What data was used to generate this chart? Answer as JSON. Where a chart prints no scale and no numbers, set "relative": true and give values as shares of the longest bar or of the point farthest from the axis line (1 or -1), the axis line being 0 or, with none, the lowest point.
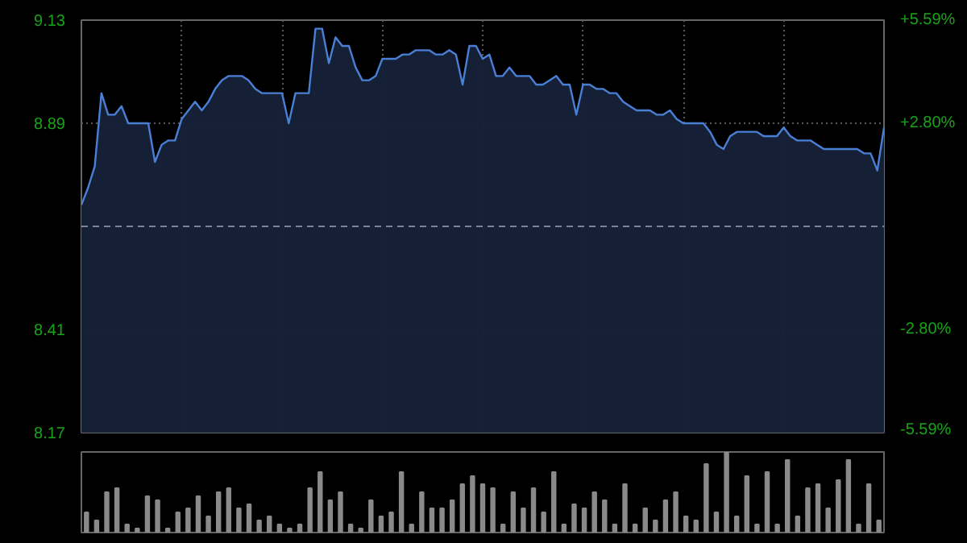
{
  "chart_data": [
    {
      "type": "area",
      "categories": [
        null,
        null,
        null,
        null,
        null,
        null,
        null,
        null,
        null,
        null,
        null,
        null,
        null,
        null,
        null,
        null,
        null,
        null,
        null,
        null,
        null,
        null,
        null,
        null,
        null,
        null,
        null,
        null,
        null,
        null,
        null,
        null,
        null,
        null,
        null,
        null,
        null,
        null,
        null,
        null,
        null,
        null,
        null,
        null,
        null,
        null,
        null,
        null,
        null,
        null,
        null,
        null,
        null,
        null,
        null,
        null,
        null,
        null,
        null,
        null,
        null,
        null,
        null,
        null,
        null,
        null,
        null,
        null,
        null,
        null,
        null,
        null,
        null,
        null,
        null,
        null,
        null,
        null,
        null,
        null,
        null,
        null,
        null,
        null,
        null,
        null,
        null,
        null,
        null,
        null,
        null,
        null,
        null,
        null,
        null,
        null,
        null,
        null,
        null,
        null,
        null,
        null,
        null,
        null,
        null,
        null,
        null,
        null,
        null,
        null,
        null,
        null,
        null,
        null,
        null,
        null,
        null,
        null,
        null,
        null,
        null
      ],
      "series": [
        {
          "color": "#4a7fd6",
          "values": [
            8.7,
            8.74,
            8.79,
            8.96,
            8.91,
            8.91,
            8.93,
            8.89,
            8.89,
            8.89,
            8.89,
            8.8,
            8.84,
            8.85,
            8.85,
            8.9,
            8.92,
            8.94,
            8.92,
            8.94,
            8.97,
            8.99,
            9.0,
            9.0,
            9.0,
            8.99,
            8.97,
            8.96,
            8.96,
            8.96,
            8.96,
            8.89,
            8.96,
            8.96,
            8.96,
            9.11,
            9.11,
            9.03,
            9.09,
            9.07,
            9.07,
            9.02,
            8.99,
            8.99,
            9.0,
            9.04,
            9.04,
            9.04,
            9.05,
            9.05,
            9.06,
            9.06,
            9.06,
            9.05,
            9.05,
            9.06,
            9.05,
            8.98,
            9.07,
            9.07,
            9.04,
            9.05,
            9.0,
            9.0,
            9.02,
            9.0,
            9.0,
            9.0,
            8.98,
            8.98,
            8.99,
            9.0,
            8.98,
            8.98,
            8.91,
            8.98,
            8.98,
            8.97,
            8.97,
            8.96,
            8.96,
            8.94,
            8.93,
            8.92,
            8.92,
            8.92,
            8.91,
            8.91,
            8.92,
            8.9,
            8.89,
            8.89,
            8.89,
            8.89,
            8.87,
            8.84,
            8.83,
            8.86,
            8.87,
            8.87,
            8.87,
            8.87,
            8.86,
            8.86,
            8.86,
            8.88,
            8.86,
            8.85,
            8.85,
            8.85,
            8.84,
            8.83,
            8.83,
            8.83,
            8.83,
            8.83,
            8.83,
            8.82,
            8.82,
            8.78,
            8.88
          ]
        }
      ],
      "ylim": [
        8.17,
        9.13
      ],
      "yticks": [
        8.17,
        8.41,
        8.89,
        9.13
      ],
      "y2lim": [
        -5.59,
        5.59
      ],
      "y2ticks": [
        {
          "value": -5.59,
          "label": "-5.59%"
        },
        {
          "value": -2.8,
          "label": "-2.80%"
        },
        {
          "value": 2.8,
          "label": "+2.80%"
        },
        {
          "value": 5.59,
          "label": "+5.59%"
        }
      ],
      "ref_lines": [
        {
          "axis": "y",
          "value": 8.65,
          "line_style": "dashed",
          "color": "#7a8494"
        }
      ],
      "grid": true,
      "marker": "none",
      "line_style": "solid"
    },
    {
      "type": "bar",
      "relative": true,
      "categories": [
        null,
        null,
        null,
        null,
        null,
        null,
        null,
        null,
        null,
        null,
        null,
        null,
        null,
        null,
        null,
        null,
        null,
        null,
        null,
        null,
        null,
        null,
        null,
        null,
        null,
        null,
        null,
        null,
        null,
        null,
        null,
        null,
        null,
        null,
        null,
        null,
        null,
        null,
        null,
        null,
        null,
        null,
        null,
        null,
        null,
        null,
        null,
        null,
        null,
        null,
        null,
        null,
        null,
        null,
        null,
        null,
        null,
        null,
        null,
        null,
        null,
        null,
        null,
        null,
        null,
        null,
        null,
        null,
        null,
        null,
        null,
        null,
        null,
        null,
        null,
        null,
        null,
        null,
        null
      ],
      "values": [
        0.25,
        0.15,
        0.5,
        0.55,
        0.1,
        0.05,
        0.45,
        0.4,
        0.05,
        0.25,
        0.3,
        0.45,
        0.2,
        0.5,
        0.55,
        0.3,
        0.35,
        0.15,
        0.2,
        0.1,
        0.05,
        0.1,
        0.55,
        0.75,
        0.4,
        0.5,
        0.1,
        0.05,
        0.4,
        0.2,
        0.25,
        0.75,
        0.1,
        0.5,
        0.3,
        0.3,
        0.4,
        0.6,
        0.7,
        0.6,
        0.55,
        0.1,
        0.5,
        0.3,
        0.55,
        0.25,
        0.75,
        0.1,
        0.35,
        0.3,
        0.5,
        0.4,
        0.1,
        0.6,
        0.1,
        0.3,
        0.15,
        0.4,
        0.5,
        0.2,
        0.15,
        0.85,
        0.25,
        1.0,
        0.2,
        0.7,
        0.1,
        0.75,
        0.1,
        0.9,
        0.2,
        0.55,
        0.6,
        0.3,
        0.65,
        0.9,
        0.1,
        0.6,
        0.15
      ],
      "color": "#8a8a8a"
    }
  ]
}
